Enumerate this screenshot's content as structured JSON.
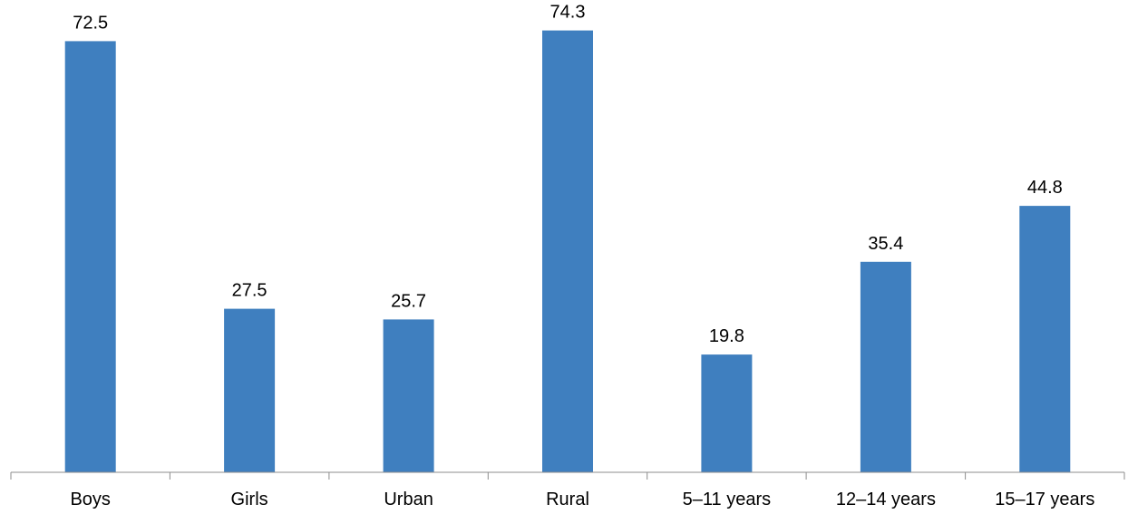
{
  "chart_data": {
    "type": "bar",
    "categories": [
      "Boys",
      "Girls",
      "Urban",
      "Rural",
      "5–11 years",
      "12–14 years",
      "15–17 years"
    ],
    "values": [
      72.5,
      27.5,
      25.7,
      74.3,
      19.8,
      35.4,
      44.8
    ],
    "value_labels": [
      "72.5",
      "27.5",
      "25.7",
      "74.3",
      "19.8",
      "35.4",
      "44.8"
    ],
    "title": "",
    "xlabel": "",
    "ylabel": "",
    "ylim": [
      0,
      80
    ],
    "grid": false,
    "legend": "none",
    "colors": {
      "bar": "#3f7fbf",
      "axis": "#8c8c8c",
      "text": "#000000"
    }
  }
}
